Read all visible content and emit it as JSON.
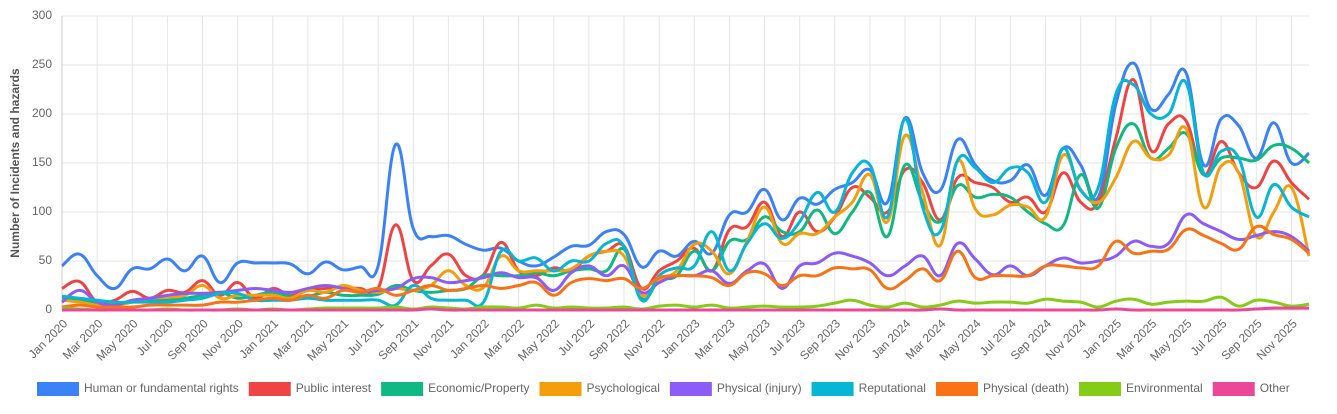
{
  "chart_data": {
    "type": "line",
    "y_label": "Number of Incidents and hazards",
    "categories": [
      "Jan 2020",
      null,
      "Mar 2020",
      null,
      "May 2020",
      null,
      "Jul 2020",
      null,
      "Sep 2020",
      null,
      "Nov 2020",
      null,
      "Jan 2021",
      null,
      "Mar 2021",
      null,
      "May 2021",
      null,
      "Jul 2021",
      null,
      "Sep 2021",
      null,
      "Nov 2021",
      null,
      "Jan 2022",
      null,
      "Mar 2022",
      null,
      "May 2022",
      null,
      "Jul 2022",
      null,
      "Sep 2022",
      null,
      "Nov 2022",
      null,
      "Jan 2023",
      null,
      "Mar 2023",
      null,
      "May 2023",
      null,
      "Jul 2023",
      null,
      "Sep 2023",
      null,
      "Nov 2023",
      null,
      "Jan 2024",
      null,
      "Mar 2024",
      null,
      "May 2024",
      null,
      "Jul 2024",
      null,
      "Sep 2024",
      null,
      "Nov 2024",
      null,
      "Jan 2025",
      null,
      "Mar 2025",
      null,
      "May 2025",
      null,
      "Jul 2025",
      null,
      "Sep 2025",
      null,
      "Nov 2025",
      null
    ],
    "series": [
      {
        "name": "Human or fundamental rights",
        "color": "#3b82f6",
        "values": [
          45,
          57,
          35,
          22,
          42,
          42,
          52,
          40,
          55,
          28,
          48,
          48,
          48,
          47,
          37,
          49,
          41,
          44,
          45,
          169,
          83,
          75,
          76,
          67,
          61,
          63,
          50,
          45,
          54,
          65,
          66,
          80,
          77,
          44,
          60,
          55,
          70,
          58,
          97,
          100,
          123,
          92,
          114,
          108,
          123,
          130,
          143,
          110,
          196,
          140,
          122,
          174,
          148,
          132,
          132,
          148,
          117,
          165,
          148,
          115,
          210,
          252,
          205,
          220,
          242,
          148,
          195,
          188,
          155,
          191,
          150,
          160
        ]
      },
      {
        "name": "Public interest",
        "color": "#ef4444",
        "values": [
          22,
          29,
          8,
          10,
          19,
          12,
          20,
          18,
          30,
          15,
          28,
          12,
          22,
          15,
          20,
          22,
          23,
          22,
          22,
          87,
          30,
          45,
          57,
          35,
          36,
          69,
          40,
          35,
          43,
          40,
          55,
          60,
          65,
          22,
          40,
          50,
          63,
          40,
          82,
          85,
          110,
          75,
          100,
          80,
          95,
          125,
          115,
          100,
          143,
          130,
          92,
          135,
          130,
          125,
          110,
          115,
          100,
          140,
          110,
          110,
          175,
          235,
          163,
          190,
          193,
          138,
          172,
          140,
          125,
          152,
          130,
          113
        ]
      },
      {
        "name": "Economic/Property",
        "color": "#10b981",
        "values": [
          12,
          10,
          7,
          5,
          8,
          10,
          10,
          12,
          15,
          18,
          12,
          15,
          18,
          14,
          14,
          18,
          15,
          15,
          16,
          25,
          20,
          18,
          20,
          22,
          35,
          35,
          35,
          38,
          35,
          40,
          42,
          40,
          62,
          12,
          30,
          35,
          60,
          40,
          70,
          72,
          95,
          80,
          80,
          102,
          78,
          100,
          120,
          75,
          148,
          110,
          90,
          127,
          115,
          118,
          115,
          100,
          88,
          86,
          138,
          104,
          165,
          190,
          155,
          165,
          180,
          138,
          155,
          155,
          153,
          168,
          165,
          150
        ]
      },
      {
        "name": "Psychological",
        "color": "#f59e0b",
        "values": [
          10,
          8,
          5,
          5,
          8,
          12,
          13,
          15,
          25,
          12,
          15,
          15,
          15,
          12,
          20,
          18,
          25,
          20,
          18,
          22,
          20,
          25,
          40,
          25,
          23,
          55,
          40,
          40,
          40,
          42,
          55,
          60,
          55,
          15,
          30,
          40,
          67,
          60,
          37,
          70,
          105,
          68,
          78,
          78,
          95,
          110,
          138,
          90,
          178,
          120,
          66,
          152,
          103,
          97,
          107,
          105,
          95,
          158,
          123,
          110,
          135,
          172,
          155,
          158,
          185,
          105,
          147,
          140,
          75,
          100,
          125,
          55
        ]
      },
      {
        "name": "Physical (injury)",
        "color": "#8b5cf6",
        "values": [
          8,
          20,
          8,
          5,
          10,
          12,
          15,
          17,
          17,
          18,
          20,
          22,
          20,
          18,
          22,
          25,
          22,
          18,
          20,
          22,
          32,
          33,
          28,
          30,
          33,
          38,
          33,
          33,
          20,
          38,
          45,
          35,
          45,
          18,
          28,
          35,
          35,
          40,
          27,
          40,
          47,
          22,
          45,
          48,
          58,
          55,
          48,
          35,
          45,
          55,
          35,
          68,
          52,
          36,
          45,
          35,
          45,
          53,
          48,
          50,
          55,
          70,
          65,
          68,
          97,
          88,
          80,
          72,
          76,
          80,
          75,
          60
        ]
      },
      {
        "name": "Reputational",
        "color": "#06b6d4",
        "values": [
          14,
          12,
          10,
          8,
          8,
          8,
          8,
          10,
          12,
          17,
          17,
          10,
          10,
          10,
          12,
          10,
          10,
          10,
          10,
          5,
          25,
          12,
          10,
          10,
          8,
          60,
          50,
          53,
          40,
          50,
          50,
          68,
          65,
          10,
          35,
          43,
          45,
          80,
          40,
          68,
          88,
          73,
          90,
          120,
          100,
          140,
          148,
          95,
          195,
          105,
          80,
          153,
          145,
          130,
          145,
          140,
          110,
          165,
          122,
          125,
          220,
          230,
          200,
          200,
          232,
          140,
          162,
          155,
          95,
          128,
          105,
          95
        ]
      },
      {
        "name": "Physical (death)",
        "color": "#f97316",
        "values": [
          3,
          5,
          3,
          3,
          3,
          5,
          5,
          5,
          5,
          8,
          8,
          10,
          12,
          10,
          15,
          12,
          20,
          18,
          22,
          15,
          20,
          25,
          20,
          22,
          25,
          22,
          25,
          28,
          15,
          28,
          32,
          30,
          32,
          22,
          33,
          35,
          35,
          33,
          25,
          38,
          37,
          25,
          35,
          35,
          43,
          42,
          41,
          22,
          30,
          42,
          30,
          60,
          33,
          35,
          35,
          35,
          45,
          45,
          43,
          45,
          70,
          58,
          60,
          62,
          82,
          76,
          68,
          62,
          85,
          77,
          72,
          58
        ]
      },
      {
        "name": "Environmental",
        "color": "#84cc16",
        "values": [
          2,
          1,
          0,
          0,
          0,
          0,
          1,
          0,
          0,
          0,
          1,
          0,
          1,
          0,
          1,
          2,
          2,
          2,
          2,
          3,
          1,
          3,
          2,
          1,
          3,
          3,
          2,
          5,
          2,
          3,
          2,
          2,
          3,
          1,
          4,
          5,
          3,
          5,
          2,
          3,
          4,
          3,
          3,
          4,
          7,
          10,
          5,
          3,
          7,
          3,
          5,
          9,
          7,
          8,
          8,
          7,
          11,
          9,
          8,
          3,
          9,
          11,
          6,
          8,
          9,
          9,
          13,
          4,
          10,
          8,
          4,
          6
        ]
      },
      {
        "name": "Other",
        "color": "#ec4899",
        "values": [
          0,
          0,
          0,
          0,
          0,
          0,
          0,
          0,
          0,
          0,
          0,
          0,
          0,
          0,
          0,
          0,
          0,
          0,
          0,
          0,
          0,
          1,
          0,
          0,
          0,
          0,
          0,
          0,
          0,
          0,
          0,
          0,
          0,
          0,
          0,
          0,
          0,
          0,
          0,
          0,
          0,
          0,
          0,
          0,
          0,
          0,
          0,
          0,
          0,
          0,
          1,
          0,
          0,
          0,
          0,
          0,
          0,
          0,
          0,
          0,
          1,
          0,
          0,
          0,
          0,
          0,
          0,
          0,
          1,
          2,
          2,
          2
        ]
      }
    ],
    "ylim": [
      0,
      300
    ],
    "yticks": [
      0,
      50,
      100,
      150,
      200,
      250,
      300
    ],
    "grid": true,
    "legend": "bottom"
  }
}
